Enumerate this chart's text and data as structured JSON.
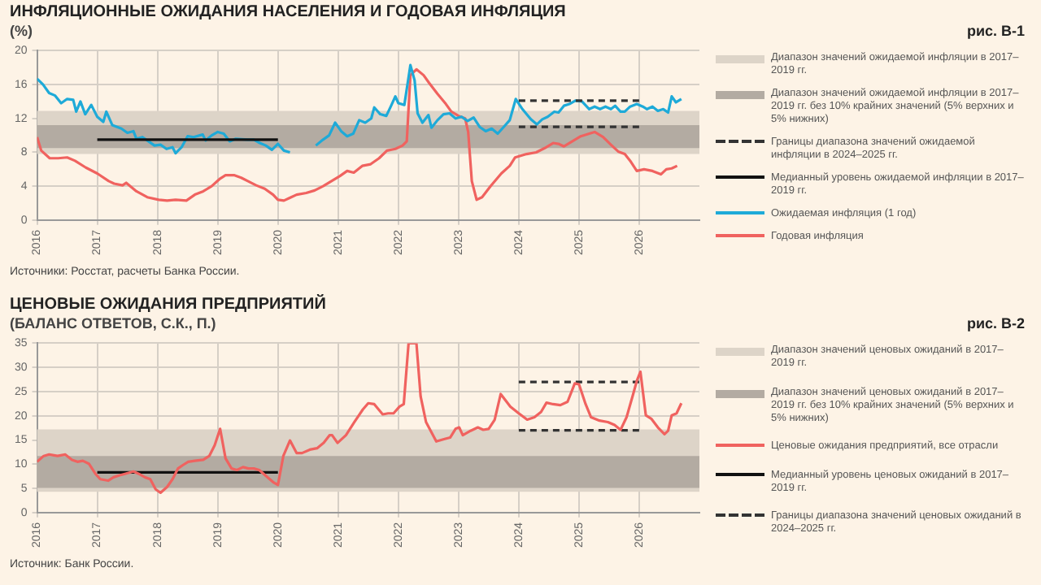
{
  "chart_data": [
    {
      "type": "line",
      "title": "ИНФЛЯЦИОННЫЕ ОЖИДАНИЯ НАСЕЛЕНИЯ И ГОДОВАЯ ИНФЛЯЦИЯ",
      "subtitle": "(%)",
      "annotations": [
        "рис. В-1",
        "Источники: Росстат, расчеты Банка России."
      ],
      "xlim": [
        2016,
        2027
      ],
      "xticks": [
        2016,
        2017,
        2018,
        2019,
        2020,
        2021,
        2022,
        2023,
        2024,
        2025,
        2026
      ],
      "ylim": [
        0,
        20
      ],
      "yticks": [
        0,
        4,
        8,
        12,
        16,
        20
      ],
      "grid": true,
      "legend": "right",
      "marker": "none",
      "bands": [
        {
          "axis": "y",
          "from": 7.8,
          "to": 12.9,
          "color": "#ddd4c8",
          "label": "Диапазон значений ожидаемой инфляции в 2017–2019 гг."
        },
        {
          "axis": "y",
          "from": 8.5,
          "to": 11.2,
          "color": "#b3aba2",
          "label": "Диапазон значений ожидаемой инфляции в 2017–2019 гг. без 10% крайних значений (5% верхних и 5% нижних)"
        }
      ],
      "series": [
        {
          "name": "Границы диапазона значений ожидаемой инфляции в 2024–2025 гг.",
          "color": "#333333",
          "line_style": "dashed",
          "x": [
            2024,
            2026
          ],
          "values": [
            14.1,
            14.1
          ]
        },
        {
          "color": "#333333",
          "line_style": "dashed",
          "x": [
            2024,
            2026
          ],
          "values": [
            11.0,
            11.0
          ]
        },
        {
          "name": "Медианный уровень ожидаемой инфляции в 2017–2019 гг.",
          "color": "#111111",
          "x": [
            2017,
            2020
          ],
          "values": [
            9.5,
            9.5
          ]
        },
        {
          "name": "Ожидаемая инфляция (1 год)",
          "color": "#1eaad8",
          "x": [
            2016.0,
            2016.1,
            2016.2,
            2016.3,
            2016.4,
            2016.5,
            2016.6,
            2016.65,
            2016.72,
            2016.8,
            2016.9,
            2017.0,
            2017.1,
            2017.15,
            2017.25,
            2017.4,
            2017.5,
            2017.6,
            2017.65,
            2017.75,
            2017.85,
            2017.95,
            2018.05,
            2018.15,
            2018.25,
            2018.3,
            2018.4,
            2018.5,
            2018.6,
            2018.75,
            2018.8,
            2018.9,
            2019.0,
            2019.1,
            2019.2,
            2019.3,
            2019.5,
            2019.6,
            2019.7,
            2019.8,
            2019.9,
            2020.0,
            2020.1,
            2020.2,
            2020.4,
            2020.63,
            2020.75,
            2020.85,
            2020.95,
            2021.05,
            2021.15,
            2021.25,
            2021.35,
            2021.45,
            2021.55,
            2021.6,
            2021.7,
            2021.8,
            2021.88,
            2021.95,
            2022.0,
            2022.1,
            2022.2,
            2022.27,
            2022.32,
            2022.4,
            2022.5,
            2022.55,
            2022.65,
            2022.75,
            2022.85,
            2022.95,
            2023.05,
            2023.15,
            2023.25,
            2023.35,
            2023.45,
            2023.55,
            2023.65,
            2023.75,
            2023.85,
            2023.95,
            2024.06,
            2024.2,
            2024.3,
            2024.39,
            2024.48,
            2024.59,
            2024.66,
            2024.75,
            2024.84,
            2024.94,
            2025.05,
            2025.17,
            2025.26,
            2025.35,
            2025.44,
            2025.53,
            2025.6,
            2025.69,
            2025.76,
            2025.85,
            2025.96,
            2026.06,
            2026.13,
            2026.22,
            2026.31,
            2026.4,
            2026.48,
            2026.54,
            2026.61,
            2026.7
          ],
          "values": [
            16.7,
            16.0,
            15.0,
            14.7,
            13.8,
            14.3,
            14.2,
            12.8,
            14.0,
            12.5,
            13.6,
            12.2,
            11.6,
            12.8,
            11.2,
            10.8,
            10.3,
            10.5,
            9.6,
            9.8,
            9.3,
            8.8,
            8.9,
            8.4,
            8.6,
            7.9,
            8.6,
            9.9,
            9.8,
            10.1,
            9.4,
            10.0,
            10.4,
            10.2,
            9.3,
            9.6,
            9.5,
            9.5,
            9.1,
            8.8,
            8.3,
            9.0,
            8.2,
            8.0,
            null,
            8.8,
            9.5,
            10.0,
            11.5,
            10.5,
            9.9,
            10.2,
            11.8,
            11.5,
            12.0,
            13.3,
            12.5,
            12.3,
            13.5,
            14.6,
            13.8,
            13.6,
            18.3,
            16.5,
            12.6,
            11.5,
            12.4,
            10.9,
            11.8,
            12.5,
            12.6,
            12.0,
            12.2,
            11.7,
            12.1,
            11.0,
            10.5,
            10.8,
            10.2,
            11.0,
            11.8,
            14.3,
            13.1,
            11.9,
            11.3,
            11.9,
            12.2,
            12.8,
            12.7,
            13.5,
            13.7,
            14.1,
            14.0,
            13.1,
            13.4,
            13.1,
            13.4,
            13.1,
            13.5,
            12.8,
            12.8,
            13.4,
            13.7,
            13.4,
            13.1,
            13.4,
            12.9,
            13.1,
            12.7,
            14.6,
            13.9,
            14.3
          ]
        },
        {
          "name": "Годовая инфляция",
          "color": "#f0625f",
          "x": [
            2016.0,
            2016.07,
            2016.21,
            2016.35,
            2016.5,
            2016.63,
            2016.81,
            2017.0,
            2017.19,
            2017.28,
            2017.42,
            2017.48,
            2017.65,
            2017.83,
            2018.02,
            2018.16,
            2018.3,
            2018.48,
            2018.62,
            2018.76,
            2018.9,
            2019.04,
            2019.13,
            2019.27,
            2019.39,
            2019.5,
            2019.64,
            2019.78,
            2019.92,
            2020.0,
            2020.1,
            2020.19,
            2020.31,
            2020.47,
            2020.61,
            2020.75,
            2020.89,
            2021.03,
            2021.15,
            2021.26,
            2021.4,
            2021.54,
            2021.68,
            2021.81,
            2021.95,
            2022.07,
            2022.14,
            2022.2,
            2022.3,
            2022.42,
            2022.51,
            2022.65,
            2022.79,
            2022.88,
            2023.0,
            2023.11,
            2023.16,
            2023.22,
            2023.3,
            2023.39,
            2023.53,
            2023.71,
            2023.85,
            2023.94,
            2024.13,
            2024.29,
            2024.43,
            2024.57,
            2024.66,
            2024.75,
            2024.89,
            2025.03,
            2025.17,
            2025.26,
            2025.4,
            2025.53,
            2025.65,
            2025.76,
            2025.85,
            2025.96,
            2026.08,
            2026.22,
            2026.36,
            2026.45,
            2026.54,
            2026.63
          ],
          "values": [
            9.8,
            8.2,
            7.3,
            7.3,
            7.4,
            7.0,
            6.2,
            5.5,
            4.6,
            4.3,
            4.1,
            4.4,
            3.4,
            2.7,
            2.4,
            2.3,
            2.4,
            2.3,
            3.0,
            3.4,
            4.0,
            4.9,
            5.3,
            5.3,
            5.0,
            4.6,
            4.1,
            3.7,
            3.0,
            2.4,
            2.3,
            2.6,
            3.0,
            3.2,
            3.5,
            4.0,
            4.6,
            5.2,
            5.8,
            5.6,
            6.4,
            6.6,
            7.3,
            8.2,
            8.4,
            8.8,
            9.3,
            17.1,
            17.8,
            17.1,
            16.2,
            14.9,
            13.7,
            12.8,
            12.3,
            12.0,
            10.4,
            4.6,
            2.4,
            2.7,
            4.0,
            5.5,
            6.4,
            7.4,
            7.8,
            8.0,
            8.5,
            9.1,
            9.0,
            8.7,
            9.3,
            9.9,
            10.2,
            10.4,
            9.8,
            8.9,
            8.1,
            7.8,
            7.0,
            5.8,
            6.0,
            5.8,
            5.4,
            6.0,
            6.1,
            6.4
          ]
        }
      ]
    },
    {
      "type": "line",
      "title": "ЦЕНОВЫЕ ОЖИДАНИЯ ПРЕДПРИЯТИЙ",
      "subtitle": "(БАЛАНС ОТВЕТОВ, С.К., П.)",
      "annotations": [
        "рис. В-2",
        "Источник: Банк России."
      ],
      "xlim": [
        2016,
        2027
      ],
      "xticks": [
        2016,
        2017,
        2018,
        2019,
        2020,
        2021,
        2022,
        2023,
        2024,
        2025,
        2026
      ],
      "ylim": [
        0,
        35
      ],
      "yticks": [
        0,
        5,
        10,
        15,
        20,
        25,
        30,
        35
      ],
      "grid": true,
      "legend": "right",
      "marker": "none",
      "bands": [
        {
          "axis": "y",
          "from": 4.3,
          "to": 17.2,
          "color": "#ddd4c8",
          "label": "Диапазон значений ценовых ожиданий в 2017–2019 гг."
        },
        {
          "axis": "y",
          "from": 5.1,
          "to": 11.7,
          "color": "#b3aba2",
          "label": "Диапазон значений ценовых ожиданий в 2017–2019 гг. без 10% крайних значений (5% верхних и 5% нижних)"
        }
      ],
      "series": [
        {
          "name": "Ценовые ожидания предприятий, все отрасли",
          "color": "#f0625f",
          "x": [
            2016.0,
            2016.11,
            2016.2,
            2016.34,
            2016.47,
            2016.58,
            2016.67,
            2016.76,
            2016.86,
            2016.97,
            2017.05,
            2017.18,
            2017.27,
            2017.37,
            2017.46,
            2017.6,
            2017.69,
            2017.79,
            2017.88,
            2017.97,
            2018.05,
            2018.16,
            2018.25,
            2018.34,
            2018.42,
            2018.51,
            2018.62,
            2018.76,
            2018.86,
            2018.95,
            2019.04,
            2019.13,
            2019.23,
            2019.32,
            2019.42,
            2019.51,
            2019.6,
            2019.69,
            2019.79,
            2019.93,
            2020.0,
            2020.09,
            2020.2,
            2020.31,
            2020.4,
            2020.53,
            2020.65,
            2020.76,
            2020.86,
            2020.9,
            2020.99,
            2021.13,
            2021.27,
            2021.41,
            2021.5,
            2021.6,
            2021.74,
            2021.83,
            2021.92,
            2022.02,
            2022.09,
            2022.17,
            2022.3,
            2022.37,
            2022.46,
            2022.63,
            2022.77,
            2022.86,
            2022.95,
            2023.01,
            2023.07,
            2023.2,
            2023.32,
            2023.41,
            2023.5,
            2023.6,
            2023.7,
            2023.86,
            2024.0,
            2024.14,
            2024.26,
            2024.37,
            2024.46,
            2024.57,
            2024.69,
            2024.81,
            2024.93,
            2025.0,
            2025.11,
            2025.2,
            2025.34,
            2025.48,
            2025.59,
            2025.69,
            2025.79,
            2025.9,
            2025.96,
            2026.02,
            2026.11,
            2026.2,
            2026.31,
            2026.42,
            2026.48,
            2026.54,
            2026.62,
            2026.7
          ],
          "values": [
            10.5,
            11.7,
            12.0,
            11.7,
            12.0,
            10.9,
            10.5,
            10.7,
            10.1,
            8.0,
            6.9,
            6.6,
            7.3,
            7.7,
            8.0,
            8.5,
            8.0,
            7.3,
            6.9,
            4.8,
            4.1,
            5.3,
            6.9,
            9.1,
            9.8,
            10.5,
            10.7,
            10.9,
            11.7,
            13.9,
            17.3,
            11.2,
            9.1,
            8.8,
            9.4,
            9.1,
            9.1,
            8.8,
            7.7,
            6.2,
            5.7,
            11.7,
            14.9,
            12.3,
            12.3,
            13.0,
            13.3,
            14.4,
            16.0,
            16.0,
            14.4,
            16.0,
            18.7,
            21.3,
            22.6,
            22.4,
            20.3,
            20.5,
            20.5,
            21.9,
            22.4,
            35,
            35,
            24.0,
            18.7,
            14.7,
            15.2,
            15.5,
            17.3,
            17.6,
            16.0,
            16.9,
            17.6,
            17.1,
            17.3,
            19.2,
            24.5,
            21.9,
            20.5,
            19.2,
            19.7,
            20.8,
            22.7,
            22.4,
            22.2,
            22.9,
            26.7,
            26.5,
            22.4,
            19.7,
            19.0,
            18.7,
            18.1,
            17.1,
            19.7,
            24.5,
            27.2,
            29.1,
            20.1,
            19.4,
            17.6,
            16.2,
            16.9,
            20.1,
            20.5,
            22.6
          ]
        },
        {
          "name": "Медианный уровень ценовых ожиданий в 2017–2019 гг.",
          "color": "#111111",
          "x": [
            2017,
            2020
          ],
          "values": [
            8.3,
            8.3
          ]
        },
        {
          "name": "Границы диапазона значений ценовых ожиданий в 2024–2025 гг.",
          "color": "#333333",
          "line_style": "dashed",
          "x": [
            2024,
            2026
          ],
          "values": [
            27.0,
            27.0
          ]
        },
        {
          "color": "#333333",
          "line_style": "dashed",
          "x": [
            2024,
            2026
          ],
          "values": [
            17.0,
            17.0
          ]
        }
      ]
    }
  ]
}
